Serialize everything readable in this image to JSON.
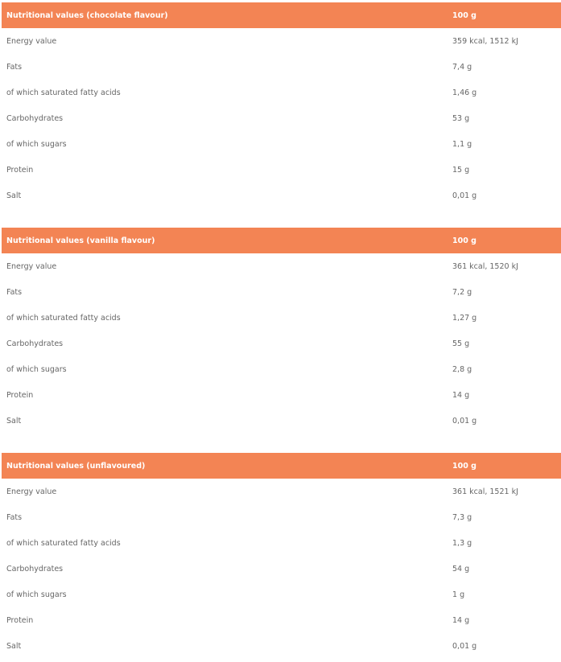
{
  "header_color": "#f38454",
  "tables": [
    {
      "title": "Nutritional values (chocolate flavour)",
      "unit": "100 g",
      "rows": [
        [
          "Energy value",
          "359 kcal, 1512 kJ"
        ],
        [
          "Fats",
          "7,4 g"
        ],
        [
          "of which saturated fatty acids",
          "1,46 g"
        ],
        [
          "Carbohydrates",
          "53 g"
        ],
        [
          "of which sugars",
          "1,1 g"
        ],
        [
          "Protein",
          "15 g"
        ],
        [
          "Salt",
          "0,01 g"
        ]
      ]
    },
    {
      "title": "Nutritional values (vanilla flavour)",
      "unit": "100 g",
      "rows": [
        [
          "Energy value",
          "361 kcal, 1520 kJ"
        ],
        [
          "Fats",
          "7,2 g"
        ],
        [
          "of which saturated fatty acids",
          "1,27 g"
        ],
        [
          "Carbohydrates",
          "55 g"
        ],
        [
          "of which sugars",
          "2,8 g"
        ],
        [
          "Protein",
          "14 g"
        ],
        [
          "Salt",
          "0,01 g"
        ]
      ]
    },
    {
      "title": "Nutritional values (unflavoured)",
      "unit": "100 g",
      "rows": [
        [
          "Energy value",
          "361 kcal, 1521 kJ"
        ],
        [
          "Fats",
          "7,3 g"
        ],
        [
          "of which saturated fatty acids",
          "1,3 g"
        ],
        [
          "Carbohydrates",
          "54 g"
        ],
        [
          "of which sugars",
          "1 g"
        ],
        [
          "Protein",
          "14 g"
        ],
        [
          "Salt",
          "0,01 g"
        ]
      ]
    }
  ]
}
